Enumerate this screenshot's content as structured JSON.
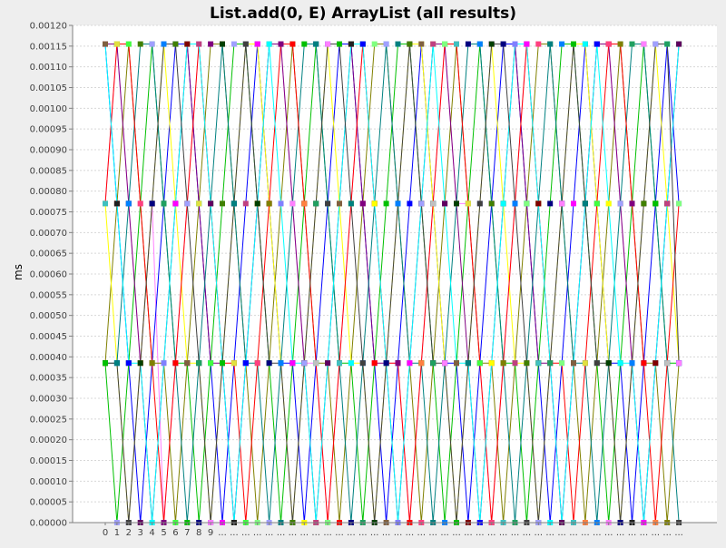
{
  "chart_data": {
    "type": "line",
    "title": "List.add(0, E) ArrayList (all results)",
    "ylabel": "ms",
    "xlabel": "",
    "ylim": [
      0,
      0.0012
    ],
    "y_ticks": [
      "0.00000",
      "0.00005",
      "0.00010",
      "0.00015",
      "0.00020",
      "0.00025",
      "0.00030",
      "0.00035",
      "0.00040",
      "0.00045",
      "0.00050",
      "0.00055",
      "0.00060",
      "0.00065",
      "0.00070",
      "0.00075",
      "0.00080",
      "0.00085",
      "0.00090",
      "0.00095",
      "0.00100",
      "0.00105",
      "0.00110",
      "0.00115",
      "0.00120"
    ],
    "categories": [
      "0",
      "1",
      "2",
      "3",
      "4",
      "5",
      "6",
      "7",
      "8",
      "9",
      "...",
      "...",
      "...",
      "...",
      "...",
      "...",
      "...",
      "...",
      "...",
      "...",
      "...",
      "...",
      "...",
      "...",
      "...",
      "...",
      "...",
      "...",
      "...",
      "...",
      "...",
      "...",
      "...",
      "...",
      "...",
      "...",
      "...",
      "...",
      "...",
      "...",
      "...",
      "...",
      "...",
      "...",
      "...",
      "...",
      "...",
      "...",
      "...",
      "..."
    ],
    "levels": [
      0,
      0.000385,
      0.00077,
      0.001155
    ],
    "grid": true,
    "legend": "none",
    "plot_background": "#ffffff",
    "series_colors": [
      "#ff80ff",
      "#808000",
      "#0000ff",
      "#00c000",
      "#800080",
      "#ffff00",
      "#008080",
      "#ff0000",
      "#00ffff",
      "#404040",
      "#ff8040",
      "#8080ff",
      "#004000",
      "#c0c0c0",
      "#ff00ff",
      "#000080",
      "#80ff80",
      "#800000",
      "#0080ff",
      "#40c0c0",
      "#c04080",
      "#408000",
      "#e0e040",
      "#600060",
      "#a0a0ff",
      "#40ff40",
      "#806040",
      "#20a060",
      "#ff4080",
      "#202020"
    ],
    "series": [
      {
        "values": [
          0.00077,
          0.001155,
          0.00077,
          0.000385,
          0.00077,
          0,
          0.000385,
          0.00077,
          0.001155,
          0.00077,
          0.000385,
          0,
          0.000385,
          0.00077,
          0.001155,
          0.001155,
          0.00077,
          0.000385,
          0.000385,
          0,
          0.000385,
          0.00077,
          0.001155,
          0.00077,
          0.000385,
          0.000385,
          0,
          0.000385,
          0.00077,
          0.001155,
          0.00077,
          0.00077,
          0.000385,
          0,
          0.000385,
          0.00077,
          0.001155,
          0.00077,
          0.000385,
          0,
          0.000385,
          0.00077,
          0.001155,
          0.001155,
          0.00077,
          0.000385,
          0,
          0.000385,
          0.00077,
          0.001155
        ]
      },
      {
        "values": [
          0.000385,
          0.00077,
          0.001155,
          0.00077,
          0.000385,
          0.000385,
          0,
          0.000385,
          0.00077,
          0.001155,
          0.001155,
          0.00077,
          0.000385,
          0,
          0.000385,
          0.00077,
          0.001155,
          0.00077,
          0.000385,
          0.000385,
          0,
          0.000385,
          0.00077,
          0.001155,
          0.001155,
          0.00077,
          0.000385,
          0,
          0.000385,
          0.00077,
          0.001155,
          0.00077,
          0.000385,
          0.000385,
          0,
          0.000385,
          0.00077,
          0.001155,
          0.001155,
          0.00077,
          0.000385,
          0,
          0.000385,
          0.00077,
          0.001155,
          0.00077,
          0.000385,
          0.000385,
          0,
          0.000385
        ]
      },
      {
        "values": [
          0.001155,
          0.00077,
          0.000385,
          0,
          0.000385,
          0.00077,
          0.001155,
          0.001155,
          0.00077,
          0.000385,
          0,
          0.000385,
          0.00077,
          0.001155,
          0.00077,
          0.000385,
          0.000385,
          0,
          0.000385,
          0.00077,
          0.001155,
          0.001155,
          0.00077,
          0.000385,
          0,
          0.000385,
          0.00077,
          0.001155,
          0.00077,
          0.000385,
          0.000385,
          0,
          0.000385,
          0.00077,
          0.001155,
          0.001155,
          0.00077,
          0.000385,
          0,
          0.000385,
          0.00077,
          0.001155,
          0.00077,
          0.000385,
          0.000385,
          0,
          0.000385,
          0.00077,
          0.001155,
          0.00077
        ]
      },
      {
        "values": [
          0.000385,
          0,
          0.000385,
          0.00077,
          0.001155,
          0.00077,
          0.000385,
          0.000385,
          0,
          0.000385,
          0.00077,
          0.001155,
          0.001155,
          0.00077,
          0.000385,
          0,
          0.000385,
          0.00077,
          0.001155,
          0.00077,
          0.000385,
          0.000385,
          0,
          0.000385,
          0.00077,
          0.001155,
          0.001155,
          0.00077,
          0.000385,
          0,
          0.000385,
          0.00077,
          0.001155,
          0.00077,
          0.000385,
          0.000385,
          0,
          0.000385,
          0.00077,
          0.001155,
          0.001155,
          0.00077,
          0.000385,
          0,
          0.000385,
          0.00077,
          0.001155,
          0.00077,
          0.000385,
          0.000385
        ]
      },
      {
        "values": [
          0.001155,
          0.001155,
          0.00077,
          0.000385,
          0,
          0.000385,
          0.00077,
          0.001155,
          0.00077,
          0.000385,
          0.000385,
          0,
          0.000385,
          0.00077,
          0.001155,
          0.001155,
          0.00077,
          0.000385,
          0,
          0.000385,
          0.00077,
          0.001155,
          0.00077,
          0.000385,
          0.000385,
          0,
          0.000385,
          0.00077,
          0.001155,
          0.001155,
          0.00077,
          0.000385,
          0,
          0.000385,
          0.00077,
          0.001155,
          0.00077,
          0.000385,
          0.000385,
          0,
          0.000385,
          0.00077,
          0.001155,
          0.001155,
          0.00077,
          0.000385,
          0,
          0.000385,
          0.00077,
          0.001155
        ]
      },
      {
        "values": [
          0.00077,
          0.000385,
          0,
          0.000385,
          0.00077,
          0.001155,
          0.00077,
          0.000385,
          0.000385,
          0,
          0.000385,
          0.00077,
          0.001155,
          0.001155,
          0.00077,
          0.000385,
          0,
          0.000385,
          0.00077,
          0.001155,
          0.00077,
          0.000385,
          0.000385,
          0,
          0.000385,
          0.00077,
          0.001155,
          0.001155,
          0.00077,
          0.000385,
          0,
          0.000385,
          0.00077,
          0.001155,
          0.00077,
          0.000385,
          0.000385,
          0,
          0.000385,
          0.00077,
          0.001155,
          0.001155,
          0.00077,
          0.000385,
          0,
          0.000385,
          0.00077,
          0.001155,
          0.00077,
          0.000385
        ]
      },
      {
        "values": [
          0.000385,
          0.000385,
          0.00077,
          0.001155,
          0.001155,
          0.00077,
          0.000385,
          0,
          0.000385,
          0.00077,
          0.001155,
          0.00077,
          0.000385,
          0.000385,
          0,
          0.000385,
          0.00077,
          0.001155,
          0.001155,
          0.00077,
          0.000385,
          0,
          0.000385,
          0.00077,
          0.001155,
          0.00077,
          0.000385,
          0.000385,
          0,
          0.000385,
          0.00077,
          0.001155,
          0.001155,
          0.00077,
          0.000385,
          0,
          0.000385,
          0.00077,
          0.001155,
          0.00077,
          0.000385,
          0.000385,
          0,
          0.000385,
          0.00077,
          0.001155,
          0.001155,
          0.00077,
          0.000385,
          0
        ]
      },
      {
        "values": [
          0.00077,
          0.001155,
          0.001155,
          0.00077,
          0.000385,
          0,
          0.000385,
          0.00077,
          0.001155,
          0.00077,
          0.000385,
          0.000385,
          0,
          0.000385,
          0.00077,
          0.001155,
          0.001155,
          0.00077,
          0.000385,
          0,
          0.000385,
          0.00077,
          0.001155,
          0.00077,
          0.000385,
          0.000385,
          0,
          0.000385,
          0.00077,
          0.001155,
          0.001155,
          0.00077,
          0.000385,
          0,
          0.000385,
          0.00077,
          0.001155,
          0.00077,
          0.000385,
          0.000385,
          0,
          0.000385,
          0.00077,
          0.001155,
          0.001155,
          0.00077,
          0.000385,
          0,
          0.000385,
          0.00077
        ]
      },
      {
        "values": [
          0.001155,
          0.00077,
          0.000385,
          0.000385,
          0,
          0.000385,
          0.00077,
          0.001155,
          0.001155,
          0.00077,
          0.000385,
          0,
          0.000385,
          0.00077,
          0.001155,
          0.00077,
          0.000385,
          0.000385,
          0,
          0.000385,
          0.00077,
          0.001155,
          0.001155,
          0.00077,
          0.000385,
          0,
          0.000385,
          0.00077,
          0.001155,
          0.00077,
          0.000385,
          0.000385,
          0,
          0.000385,
          0.00077,
          0.001155,
          0.001155,
          0.00077,
          0.000385,
          0,
          0.000385,
          0.00077,
          0.001155,
          0.00077,
          0.000385,
          0.000385,
          0,
          0.000385,
          0.00077,
          0.001155
        ]
      },
      {
        "values": [
          0.000385,
          0.000385,
          0,
          0.000385,
          0.00077,
          0.001155,
          0.001155,
          0.00077,
          0.000385,
          0,
          0.000385,
          0.00077,
          0.001155,
          0.00077,
          0.000385,
          0.000385,
          0,
          0.000385,
          0.00077,
          0.001155,
          0.001155,
          0.00077,
          0.000385,
          0,
          0.000385,
          0.00077,
          0.001155,
          0.00077,
          0.000385,
          0.000385,
          0,
          0.000385,
          0.00077,
          0.001155,
          0.001155,
          0.00077,
          0.000385,
          0,
          0.000385,
          0.00077,
          0.001155,
          0.00077,
          0.000385,
          0.000385,
          0,
          0.000385,
          0.00077,
          0.001155,
          0.001155,
          0.000385
        ]
      }
    ]
  }
}
